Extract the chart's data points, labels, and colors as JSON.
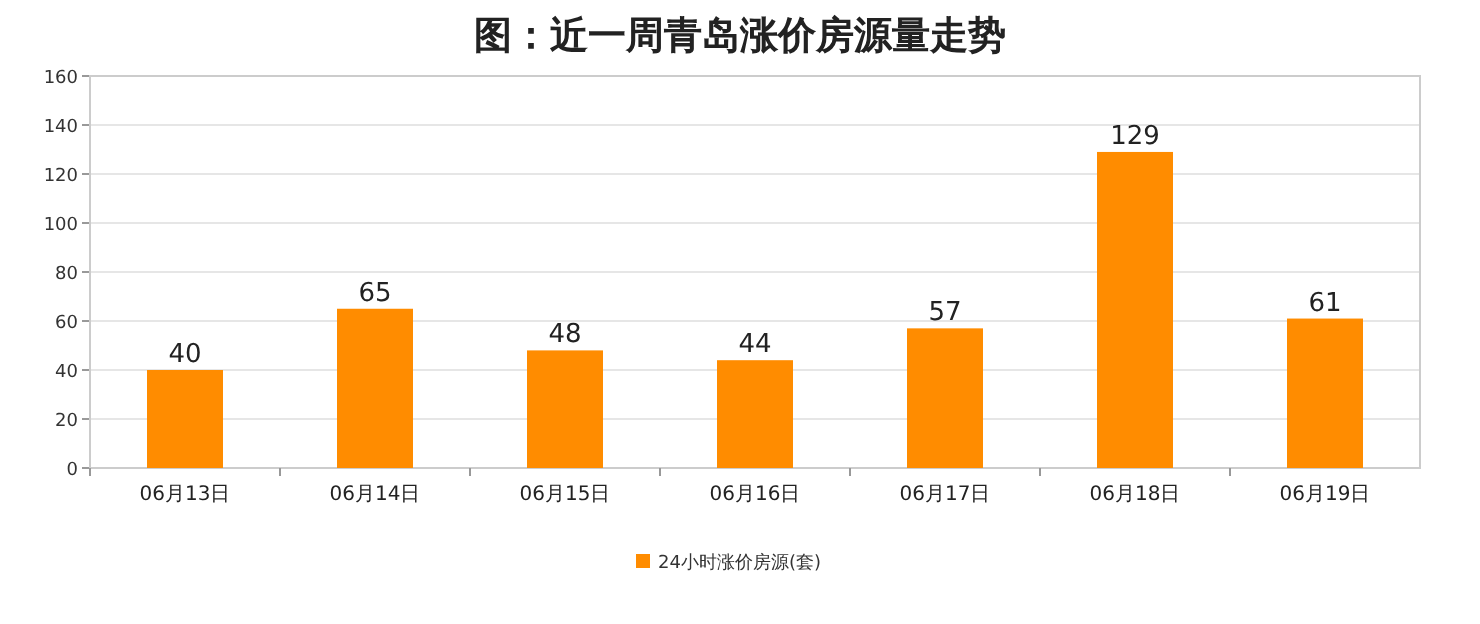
{
  "chart_data": {
    "type": "bar",
    "title": "图：近一周青岛涨价房源量走势",
    "categories": [
      "06月13日",
      "06月14日",
      "06月15日",
      "06月16日",
      "06月17日",
      "06月18日",
      "06月19日"
    ],
    "series": [
      {
        "name": "24小时涨价房源(套)",
        "color": "#ff8c00",
        "values": [
          40,
          65,
          48,
          44,
          57,
          129,
          61
        ]
      }
    ],
    "ylim": [
      0,
      160
    ],
    "yticks": [
      0,
      20,
      40,
      60,
      80,
      100,
      120,
      140,
      160
    ],
    "grid": "y",
    "legend": "bottom",
    "data_labels": true
  }
}
